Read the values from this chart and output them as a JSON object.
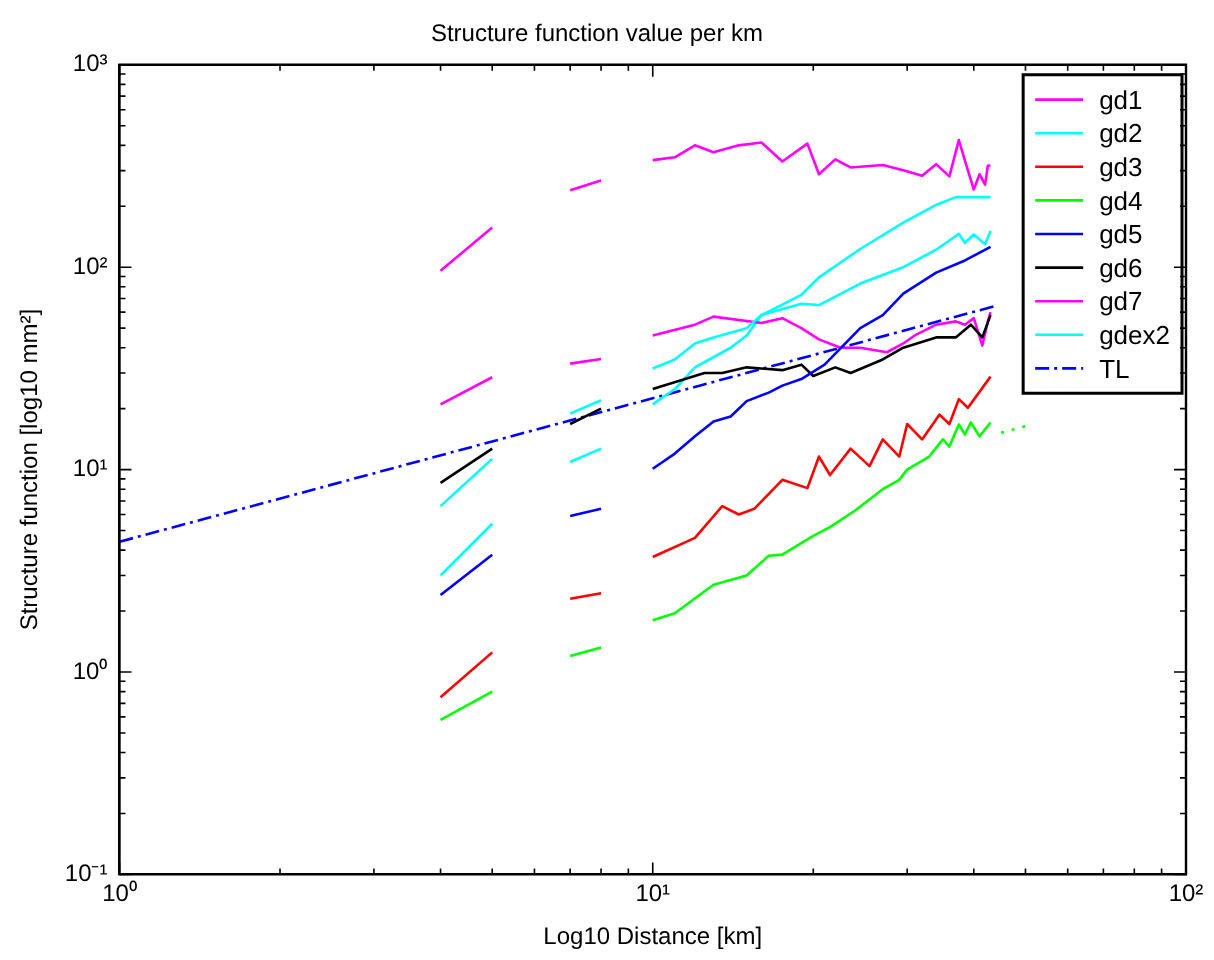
{
  "chart_data": {
    "type": "line",
    "title": "Structure function value per km",
    "xlabel": "Log10 Distance [km]",
    "ylabel": "Structure function [log10 mm²]",
    "log": "xy",
    "grid": false,
    "legend": "top right",
    "marker": "none",
    "line_style": "solid",
    "xlim": [
      1,
      100
    ],
    "ylim": [
      0.1,
      1000
    ],
    "xticks": [
      {
        "value": 1,
        "label": "10⁰"
      },
      {
        "value": 2,
        "label": null
      },
      {
        "value": 3,
        "label": null
      },
      {
        "value": 4,
        "label": null
      },
      {
        "value": 5,
        "label": null
      },
      {
        "value": 6,
        "label": null
      },
      {
        "value": 7,
        "label": null
      },
      {
        "value": 8,
        "label": null
      },
      {
        "value": 9,
        "label": null
      },
      {
        "value": 10,
        "label": "10¹"
      },
      {
        "value": 20,
        "label": null
      },
      {
        "value": 30,
        "label": null
      },
      {
        "value": 40,
        "label": null
      },
      {
        "value": 50,
        "label": null
      },
      {
        "value": 60,
        "label": null
      },
      {
        "value": 70,
        "label": null
      },
      {
        "value": 80,
        "label": null
      },
      {
        "value": 90,
        "label": null
      },
      {
        "value": 100,
        "label": "10²"
      }
    ],
    "yticks": [
      {
        "value": 0.1,
        "label": "10⁻¹"
      },
      {
        "value": 0.2,
        "label": null
      },
      {
        "value": 0.3,
        "label": null
      },
      {
        "value": 0.4,
        "label": null
      },
      {
        "value": 0.5,
        "label": null
      },
      {
        "value": 0.6,
        "label": null
      },
      {
        "value": 0.7,
        "label": null
      },
      {
        "value": 0.8,
        "label": null
      },
      {
        "value": 0.9,
        "label": null
      },
      {
        "value": 1,
        "label": "10⁰"
      },
      {
        "value": 2,
        "label": null
      },
      {
        "value": 3,
        "label": null
      },
      {
        "value": 4,
        "label": null
      },
      {
        "value": 5,
        "label": null
      },
      {
        "value": 6,
        "label": null
      },
      {
        "value": 7,
        "label": null
      },
      {
        "value": 8,
        "label": null
      },
      {
        "value": 9,
        "label": null
      },
      {
        "value": 10,
        "label": "10¹"
      },
      {
        "value": 20,
        "label": null
      },
      {
        "value": 30,
        "label": null
      },
      {
        "value": 40,
        "label": null
      },
      {
        "value": 50,
        "label": null
      },
      {
        "value": 60,
        "label": null
      },
      {
        "value": 70,
        "label": null
      },
      {
        "value": 80,
        "label": null
      },
      {
        "value": 90,
        "label": null
      },
      {
        "value": 100,
        "label": "10²"
      },
      {
        "value": 200,
        "label": null
      },
      {
        "value": 300,
        "label": null
      },
      {
        "value": 400,
        "label": null
      },
      {
        "value": 500,
        "label": null
      },
      {
        "value": 600,
        "label": null
      },
      {
        "value": 700,
        "label": null
      },
      {
        "value": 800,
        "label": null
      },
      {
        "value": 900,
        "label": null
      },
      {
        "value": 1000,
        "label": "10³"
      }
    ],
    "series": [
      {
        "name": "gd1",
        "color": "#ff00ff",
        "x": [
          4,
          5,
          6,
          7,
          8,
          9,
          10,
          11,
          12,
          13,
          14.5,
          16,
          17.5,
          19.5,
          20.5,
          22,
          23.5,
          27,
          29.5,
          32,
          34,
          36,
          37.5,
          38.5,
          40,
          41,
          42,
          42.5,
          43
        ],
        "values": [
          96,
          157,
          null,
          240,
          268,
          null,
          338,
          349,
          400,
          370,
          400,
          413,
          333,
          408,
          288,
          341,
          311,
          320,
          301,
          283,
          323,
          281,
          425,
          336,
          242,
          288,
          256,
          317,
          318
        ]
      },
      {
        "name": "gd2",
        "color": "#00ffff",
        "x": [
          4,
          5,
          6,
          7,
          8,
          9,
          10,
          11,
          12,
          13,
          15,
          16,
          19,
          20.5,
          24.5,
          29.5,
          34,
          37,
          43
        ],
        "values": [
          6.6,
          11.3,
          null,
          18.9,
          22,
          null,
          31.6,
          35,
          42,
          45,
          50,
          58,
          73,
          89,
          123,
          166,
          203,
          222,
          222
        ]
      },
      {
        "name": "gd3",
        "color": "#ff0000",
        "x": [
          4,
          5,
          6,
          7,
          8,
          9,
          10,
          12,
          13.5,
          14.5,
          15.5,
          17.5,
          19.5,
          20.5,
          21.5,
          23.5,
          25.5,
          27,
          29,
          30,
          32,
          34.5,
          36,
          37.5,
          39,
          43
        ],
        "values": [
          0.75,
          1.25,
          null,
          2.3,
          2.45,
          null,
          3.7,
          4.6,
          6.6,
          6,
          6.4,
          8.9,
          8.1,
          11.6,
          9.4,
          12.7,
          10.4,
          14.1,
          11.6,
          16.8,
          14.1,
          18.7,
          16.8,
          22.3,
          20.2,
          28.8
        ]
      },
      {
        "name": "gd4",
        "color": "#00ff00",
        "x": [
          4,
          5,
          6,
          7,
          8,
          9,
          10,
          11,
          13,
          15,
          16.5,
          17.5,
          20,
          21.5,
          24,
          27,
          29,
          30,
          33,
          35,
          36,
          37.5,
          38.5,
          39.5,
          41,
          43
        ],
        "values": [
          0.58,
          0.8,
          null,
          1.2,
          1.32,
          null,
          1.8,
          1.95,
          2.7,
          3,
          3.75,
          3.8,
          4.7,
          5.2,
          6.3,
          8,
          8.9,
          10,
          11.6,
          14.1,
          13,
          16.7,
          14.9,
          17.1,
          14.6,
          17.1
        ]
      },
      {
        "name": "gd5",
        "color": "#0000ff",
        "x": [
          4,
          5,
          6,
          7,
          8,
          9,
          10,
          11,
          12,
          13,
          14,
          15,
          16.5,
          17.5,
          19,
          21,
          24.5,
          27,
          29.5,
          34,
          38.5,
          43
        ],
        "values": [
          2.4,
          3.8,
          null,
          5.9,
          6.4,
          null,
          10.1,
          12,
          14.6,
          17.3,
          18.3,
          21.8,
          24,
          26,
          28,
          33,
          50,
          58,
          74,
          94,
          108,
          126
        ]
      },
      {
        "name": "gd6",
        "color": "#000000",
        "x": [
          4,
          5,
          6,
          7,
          8,
          9,
          10,
          11.5,
          12.5,
          13.5,
          15,
          17.5,
          19,
          20,
          22,
          23.5,
          27,
          29.5,
          34,
          37,
          39.5,
          41.5,
          43
        ],
        "values": [
          8.6,
          12.7,
          null,
          16.8,
          20,
          null,
          25,
          28,
          30,
          30,
          32,
          31,
          33,
          29,
          32,
          30,
          35,
          40,
          45,
          45,
          52,
          45,
          58
        ]
      },
      {
        "name": "gd7",
        "color": "#ff00ff",
        "x": [
          4,
          5,
          6,
          7,
          8,
          9,
          10,
          12,
          13,
          16,
          17.5,
          19,
          20.5,
          22.5,
          24.5,
          27.5,
          29.5,
          31,
          34,
          37,
          38.5,
          40,
          41.5,
          42.5,
          43
        ],
        "values": [
          21,
          28.6,
          null,
          33.4,
          35.2,
          null,
          46,
          52,
          57,
          53,
          56,
          50,
          44,
          40,
          40,
          38,
          42,
          46,
          52,
          54,
          52,
          56,
          41,
          54,
          60
        ]
      },
      {
        "name": "gdex2",
        "color": "#00ffff",
        "x": [
          4,
          5,
          6,
          7,
          8,
          9,
          10,
          11,
          12,
          14,
          15,
          16,
          19,
          20.5,
          24.5,
          29.5,
          34,
          37.5,
          38.5,
          40,
          42,
          43
        ],
        "values": [
          3,
          5.4,
          null,
          10.9,
          12.7,
          null,
          21,
          25,
          32,
          40,
          46,
          58,
          66,
          65,
          83,
          100,
          122,
          146,
          132,
          145,
          130,
          151
        ]
      },
      {
        "name": "TL",
        "color": "#0000ff",
        "line_style": "dashdot",
        "x": [
          1,
          44
        ],
        "values": [
          4.4,
          64.4
        ]
      },
      {
        "color": "#00ff00",
        "line_style": "dotted",
        "x": [
          45,
          50
        ],
        "values": [
          15.2,
          16.4
        ]
      }
    ]
  }
}
